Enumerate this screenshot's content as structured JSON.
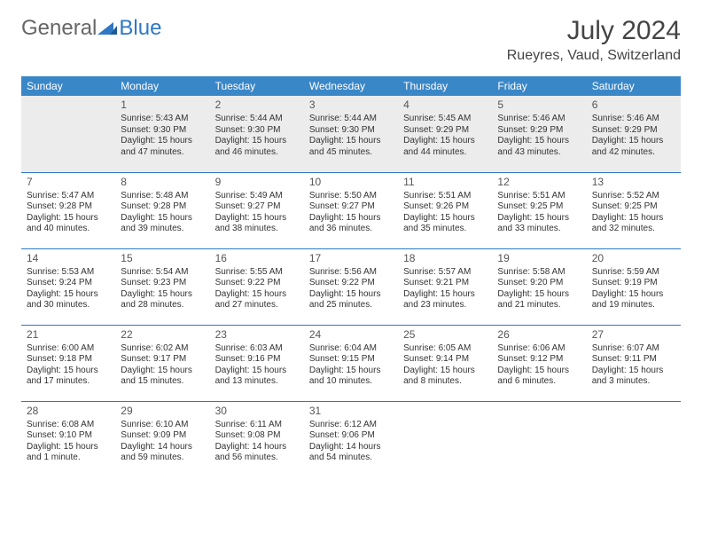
{
  "logo": {
    "part1": "General",
    "part2": "Blue"
  },
  "title": "July 2024",
  "location": "Rueyres, Vaud, Switzerland",
  "colors": {
    "header_bg": "#3a87c8",
    "header_text": "#ffffff",
    "border": "#2f78c4",
    "logo_blue": "#2f78c4",
    "text": "#333333",
    "shaded_row": "#ececec"
  },
  "weekdays": [
    "Sunday",
    "Monday",
    "Tuesday",
    "Wednesday",
    "Thursday",
    "Friday",
    "Saturday"
  ],
  "weeks": [
    [
      null,
      {
        "n": "1",
        "sr": "5:43 AM",
        "ss": "9:30 PM",
        "dl": "15 hours and 47 minutes."
      },
      {
        "n": "2",
        "sr": "5:44 AM",
        "ss": "9:30 PM",
        "dl": "15 hours and 46 minutes."
      },
      {
        "n": "3",
        "sr": "5:44 AM",
        "ss": "9:30 PM",
        "dl": "15 hours and 45 minutes."
      },
      {
        "n": "4",
        "sr": "5:45 AM",
        "ss": "9:29 PM",
        "dl": "15 hours and 44 minutes."
      },
      {
        "n": "5",
        "sr": "5:46 AM",
        "ss": "9:29 PM",
        "dl": "15 hours and 43 minutes."
      },
      {
        "n": "6",
        "sr": "5:46 AM",
        "ss": "9:29 PM",
        "dl": "15 hours and 42 minutes."
      }
    ],
    [
      {
        "n": "7",
        "sr": "5:47 AM",
        "ss": "9:28 PM",
        "dl": "15 hours and 40 minutes."
      },
      {
        "n": "8",
        "sr": "5:48 AM",
        "ss": "9:28 PM",
        "dl": "15 hours and 39 minutes."
      },
      {
        "n": "9",
        "sr": "5:49 AM",
        "ss": "9:27 PM",
        "dl": "15 hours and 38 minutes."
      },
      {
        "n": "10",
        "sr": "5:50 AM",
        "ss": "9:27 PM",
        "dl": "15 hours and 36 minutes."
      },
      {
        "n": "11",
        "sr": "5:51 AM",
        "ss": "9:26 PM",
        "dl": "15 hours and 35 minutes."
      },
      {
        "n": "12",
        "sr": "5:51 AM",
        "ss": "9:25 PM",
        "dl": "15 hours and 33 minutes."
      },
      {
        "n": "13",
        "sr": "5:52 AM",
        "ss": "9:25 PM",
        "dl": "15 hours and 32 minutes."
      }
    ],
    [
      {
        "n": "14",
        "sr": "5:53 AM",
        "ss": "9:24 PM",
        "dl": "15 hours and 30 minutes."
      },
      {
        "n": "15",
        "sr": "5:54 AM",
        "ss": "9:23 PM",
        "dl": "15 hours and 28 minutes."
      },
      {
        "n": "16",
        "sr": "5:55 AM",
        "ss": "9:22 PM",
        "dl": "15 hours and 27 minutes."
      },
      {
        "n": "17",
        "sr": "5:56 AM",
        "ss": "9:22 PM",
        "dl": "15 hours and 25 minutes."
      },
      {
        "n": "18",
        "sr": "5:57 AM",
        "ss": "9:21 PM",
        "dl": "15 hours and 23 minutes."
      },
      {
        "n": "19",
        "sr": "5:58 AM",
        "ss": "9:20 PM",
        "dl": "15 hours and 21 minutes."
      },
      {
        "n": "20",
        "sr": "5:59 AM",
        "ss": "9:19 PM",
        "dl": "15 hours and 19 minutes."
      }
    ],
    [
      {
        "n": "21",
        "sr": "6:00 AM",
        "ss": "9:18 PM",
        "dl": "15 hours and 17 minutes."
      },
      {
        "n": "22",
        "sr": "6:02 AM",
        "ss": "9:17 PM",
        "dl": "15 hours and 15 minutes."
      },
      {
        "n": "23",
        "sr": "6:03 AM",
        "ss": "9:16 PM",
        "dl": "15 hours and 13 minutes."
      },
      {
        "n": "24",
        "sr": "6:04 AM",
        "ss": "9:15 PM",
        "dl": "15 hours and 10 minutes."
      },
      {
        "n": "25",
        "sr": "6:05 AM",
        "ss": "9:14 PM",
        "dl": "15 hours and 8 minutes."
      },
      {
        "n": "26",
        "sr": "6:06 AM",
        "ss": "9:12 PM",
        "dl": "15 hours and 6 minutes."
      },
      {
        "n": "27",
        "sr": "6:07 AM",
        "ss": "9:11 PM",
        "dl": "15 hours and 3 minutes."
      }
    ],
    [
      {
        "n": "28",
        "sr": "6:08 AM",
        "ss": "9:10 PM",
        "dl": "15 hours and 1 minute."
      },
      {
        "n": "29",
        "sr": "6:10 AM",
        "ss": "9:09 PM",
        "dl": "14 hours and 59 minutes."
      },
      {
        "n": "30",
        "sr": "6:11 AM",
        "ss": "9:08 PM",
        "dl": "14 hours and 56 minutes."
      },
      {
        "n": "31",
        "sr": "6:12 AM",
        "ss": "9:06 PM",
        "dl": "14 hours and 54 minutes."
      },
      null,
      null,
      null
    ]
  ]
}
